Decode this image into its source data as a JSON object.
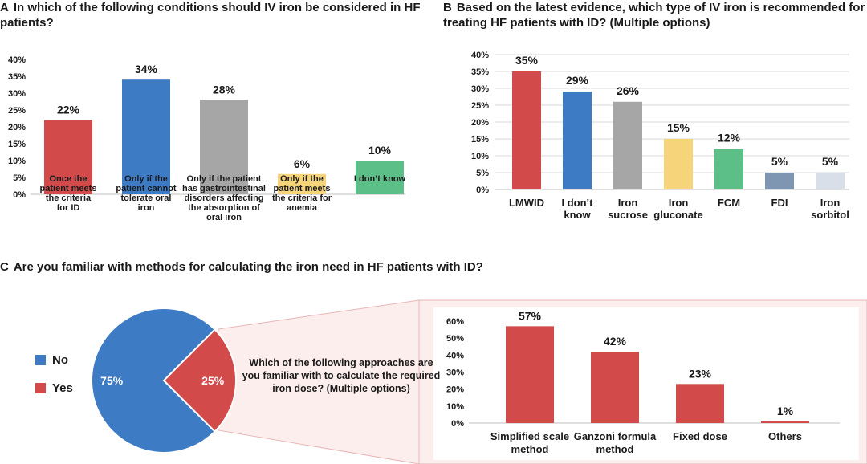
{
  "panel_a": {
    "letter": "A",
    "title": "In which of the following conditions should IV iron be considered in HF patients?"
  },
  "panel_b": {
    "letter": "B",
    "title": "Based on the latest evidence, which type of IV iron is recommended for treating HF patients with ID? (Multiple options)"
  },
  "panel_c": {
    "letter": "C",
    "title": "Are you familiar with methods for calculating the iron need in HF patients with ID?",
    "question": "Which of the following approaches are you familiar with to calculate the required iron dose? (Multiple options)"
  },
  "colors": {
    "red": "#d24a4a",
    "blue": "#3d7cc4",
    "gray": "#a6a6a6",
    "yellow": "#f6d57a",
    "green": "#5cbf87",
    "slate": "#7f96b2",
    "lightgray": "#d9dfe8",
    "pink_panel": "#fdeeee"
  },
  "chart_data": [
    {
      "id": "A",
      "type": "bar",
      "title": "In which of the following conditions should IV iron be considered in HF patients?",
      "categories": [
        [
          "Once the",
          "patient meets",
          "the criteria",
          "for ID"
        ],
        [
          "Only if the",
          "patient cannot",
          "tolerate oral",
          "iron"
        ],
        [
          "Only if the patient",
          "has gastrointestinal",
          "disorders affecting",
          "the absorption of",
          "oral iron"
        ],
        [
          "Only if the",
          "patient meets",
          "the criteria for",
          "anemia"
        ],
        [
          "I don’t know"
        ]
      ],
      "values": [
        22,
        34,
        28,
        6,
        10
      ],
      "labels": [
        "22%",
        "34%",
        "28%",
        "6%",
        "10%"
      ],
      "bar_colors": [
        "red",
        "blue",
        "gray",
        "yellow",
        "green"
      ],
      "yticks": [
        "0%",
        "5%",
        "10%",
        "15%",
        "20%",
        "25%",
        "30%",
        "35%",
        "40%"
      ],
      "ylim": [
        0,
        40
      ],
      "grid": false
    },
    {
      "id": "B",
      "type": "bar",
      "title": "Based on the latest evidence, which type of IV iron is recommended for treating HF patients with ID? (Multiple options)",
      "categories": [
        [
          "LMWID"
        ],
        [
          "I don’t",
          "know"
        ],
        [
          "Iron",
          "sucrose"
        ],
        [
          "Iron",
          "gluconate"
        ],
        [
          "FCM"
        ],
        [
          "FDI"
        ],
        [
          "Iron",
          "sorbitol"
        ]
      ],
      "values": [
        35,
        29,
        26,
        15,
        12,
        5,
        5
      ],
      "labels": [
        "35%",
        "29%",
        "26%",
        "15%",
        "12%",
        "5%",
        "5%"
      ],
      "bar_colors": [
        "red",
        "blue",
        "gray",
        "yellow",
        "green",
        "slate",
        "lightgray"
      ],
      "yticks": [
        "0%",
        "5%",
        "10%",
        "15%",
        "20%",
        "25%",
        "30%",
        "35%",
        "40%"
      ],
      "ylim": [
        0,
        40
      ],
      "grid": true
    },
    {
      "id": "C-pie",
      "type": "pie",
      "title": "Are you familiar with methods for calculating the iron need in HF patients with ID?",
      "slices": [
        {
          "name": "No",
          "value": 75,
          "label": "75%",
          "color": "blue"
        },
        {
          "name": "Yes",
          "value": 25,
          "label": "25%",
          "color": "red"
        }
      ],
      "legend": [
        "No",
        "Yes"
      ],
      "legend_position": "left"
    },
    {
      "id": "C-bar",
      "type": "bar",
      "title": "Which of the following approaches are you familiar with to calculate the required iron dose? (Multiple options)",
      "categories": [
        [
          "Simplified scale",
          "method"
        ],
        [
          "Ganzoni formula",
          "method"
        ],
        [
          "Fixed dose"
        ],
        [
          "Others"
        ]
      ],
      "values": [
        57,
        42,
        23,
        1
      ],
      "labels": [
        "57%",
        "42%",
        "23%",
        "1%"
      ],
      "bar_colors": [
        "red",
        "red",
        "red",
        "red"
      ],
      "yticks": [
        "0%",
        "10%",
        "20%",
        "30%",
        "40%",
        "50%",
        "60%"
      ],
      "ylim": [
        0,
        60
      ],
      "grid": false
    }
  ]
}
